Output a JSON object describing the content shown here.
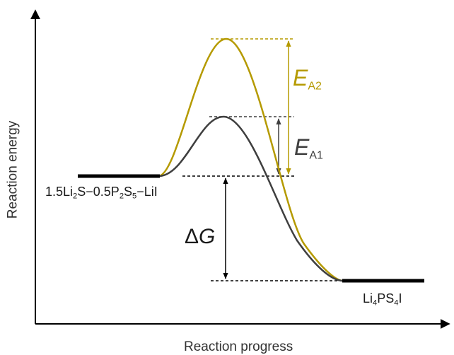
{
  "axes": {
    "y_label": "Reaction energy",
    "x_label": "Reaction progress"
  },
  "states": {
    "reactant": {
      "parts": [
        "1.5Li",
        "2",
        "S−0.5P",
        "2",
        "S",
        "5",
        "−LiI"
      ]
    },
    "product": {
      "parts": [
        "Li",
        "4",
        "PS",
        "4",
        "I"
      ]
    }
  },
  "annotations": {
    "delta_g": {
      "prefix": "Δ",
      "symbol": "G"
    },
    "ea2": {
      "symbol": "E",
      "subscript": "A2"
    },
    "ea1": {
      "symbol": "E",
      "subscript": "A1"
    }
  },
  "colors": {
    "axis": "#000000",
    "uncatalyzed_path": "#b59a00",
    "catalyzed_path": "#3f3f3f",
    "state_bar": "#000000",
    "dashed_guide": "#000000"
  }
}
